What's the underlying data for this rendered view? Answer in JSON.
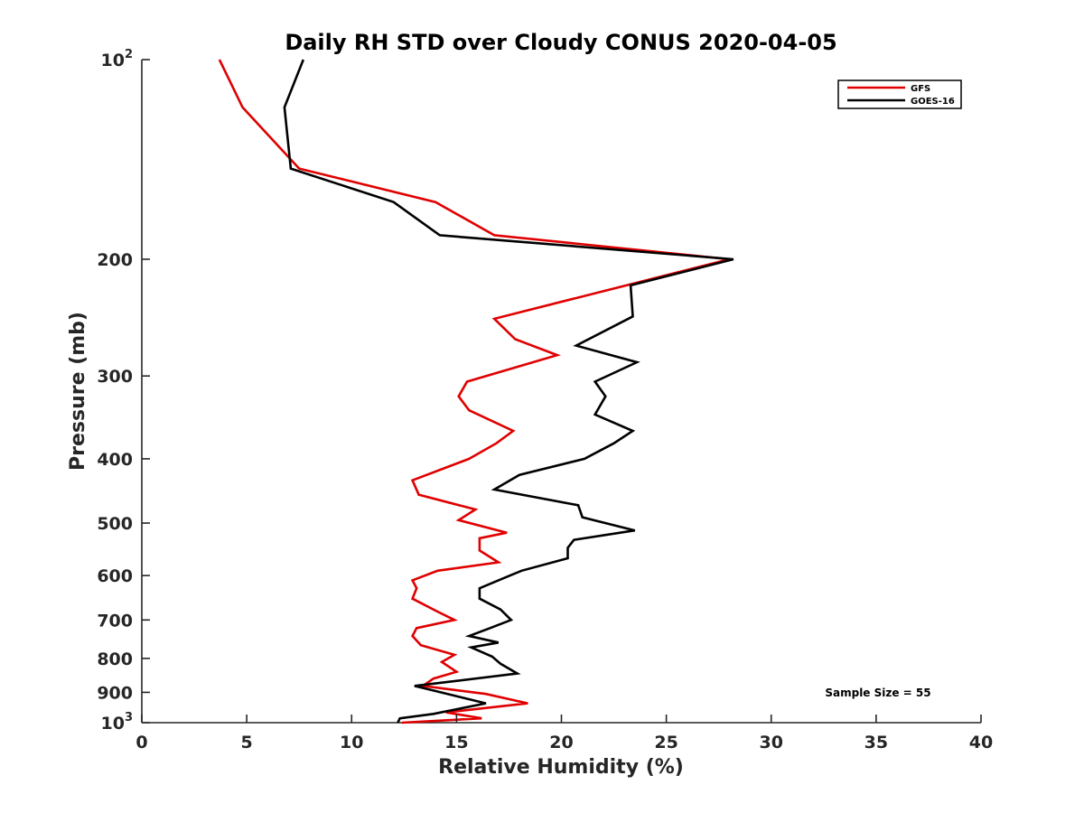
{
  "chart_data": {
    "type": "line",
    "title": "Daily RH STD over Cloudy CONUS 2020-04-05",
    "xlabel": "Relative Humidity (%)",
    "ylabel": "Pressure (mb)",
    "xlim": [
      0,
      40
    ],
    "ylim": [
      100,
      1000
    ],
    "y_scale": "log",
    "y_reversed": true,
    "grid": false,
    "legend_position": "top-right",
    "x_ticks": [
      0,
      5,
      10,
      15,
      20,
      25,
      30,
      35,
      40
    ],
    "y_ticks": [
      {
        "value": 100,
        "base": "10",
        "exp": "2"
      },
      {
        "value": 200,
        "label": "200"
      },
      {
        "value": 300,
        "label": "300"
      },
      {
        "value": 400,
        "label": "400"
      },
      {
        "value": 500,
        "label": "500"
      },
      {
        "value": 600,
        "label": "600"
      },
      {
        "value": 700,
        "label": "700"
      },
      {
        "value": 800,
        "label": "800"
      },
      {
        "value": 900,
        "label": "900"
      },
      {
        "value": 1000,
        "base": "10",
        "exp": "3"
      }
    ],
    "annotation": "Sample Size = 55",
    "series": [
      {
        "name": "GFS",
        "color": "#e00000",
        "points": [
          [
            3.7,
            100
          ],
          [
            4.8,
            118
          ],
          [
            7.5,
            146
          ],
          [
            14.0,
            164
          ],
          [
            16.8,
            184
          ],
          [
            28.0,
            200
          ],
          [
            16.8,
            246
          ],
          [
            17.8,
            264
          ],
          [
            19.8,
            279
          ],
          [
            15.5,
            306
          ],
          [
            15.1,
            322
          ],
          [
            15.6,
            338
          ],
          [
            17.7,
            363
          ],
          [
            16.9,
            379
          ],
          [
            15.6,
            400
          ],
          [
            12.9,
            431
          ],
          [
            13.2,
            453
          ],
          [
            15.9,
            477
          ],
          [
            15.1,
            495
          ],
          [
            17.4,
            517
          ],
          [
            16.1,
            527
          ],
          [
            16.1,
            550
          ],
          [
            17.0,
            573
          ],
          [
            14.1,
            590
          ],
          [
            12.9,
            610
          ],
          [
            13.1,
            627
          ],
          [
            12.9,
            650
          ],
          [
            14.1,
            680
          ],
          [
            14.9,
            700
          ],
          [
            13.1,
            720
          ],
          [
            12.9,
            740
          ],
          [
            13.3,
            764
          ],
          [
            14.9,
            790
          ],
          [
            14.3,
            810
          ],
          [
            15.0,
            838
          ],
          [
            13.9,
            858
          ],
          [
            13.4,
            880
          ],
          [
            16.4,
            905
          ],
          [
            18.4,
            935
          ],
          [
            14.5,
            965
          ],
          [
            16.2,
            985
          ],
          [
            12.4,
            1000
          ]
        ]
      },
      {
        "name": "GOES-16",
        "color": "#000000",
        "points": [
          [
            7.7,
            100
          ],
          [
            6.8,
            118
          ],
          [
            7.1,
            146
          ],
          [
            12.0,
            164
          ],
          [
            14.2,
            184
          ],
          [
            28.2,
            200
          ],
          [
            23.3,
            219
          ],
          [
            23.4,
            244
          ],
          [
            20.7,
            270
          ],
          [
            23.6,
            286
          ],
          [
            21.6,
            306
          ],
          [
            22.1,
            322
          ],
          [
            21.6,
            343
          ],
          [
            23.4,
            363
          ],
          [
            22.5,
            379
          ],
          [
            21.1,
            400
          ],
          [
            18.0,
            423
          ],
          [
            16.8,
            445
          ],
          [
            20.8,
            470
          ],
          [
            21.0,
            490
          ],
          [
            23.5,
            513
          ],
          [
            20.6,
            530
          ],
          [
            20.3,
            545
          ],
          [
            20.3,
            565
          ],
          [
            18.1,
            590
          ],
          [
            17.0,
            610
          ],
          [
            16.1,
            627
          ],
          [
            16.1,
            650
          ],
          [
            17.1,
            675
          ],
          [
            17.6,
            700
          ],
          [
            16.6,
            720
          ],
          [
            15.6,
            740
          ],
          [
            17.0,
            757
          ],
          [
            15.7,
            770
          ],
          [
            16.7,
            795
          ],
          [
            17.1,
            815
          ],
          [
            17.9,
            843
          ],
          [
            13.0,
            880
          ],
          [
            16.4,
            935
          ],
          [
            13.9,
            970
          ],
          [
            12.3,
            985
          ],
          [
            12.2,
            1000
          ]
        ]
      }
    ]
  }
}
